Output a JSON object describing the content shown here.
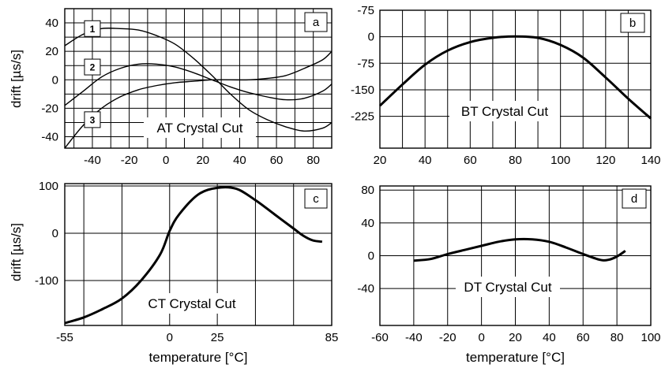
{
  "chart_data": [
    {
      "id": "a",
      "type": "line",
      "panel_label": "a",
      "title": "AT Crystal Cut",
      "ylabel": "drift [µs/s]",
      "xlabel": "",
      "xlim": [
        -55,
        90
      ],
      "ylim": [
        -48,
        50
      ],
      "xticks": [
        -40,
        -20,
        0,
        20,
        40,
        60,
        80
      ],
      "yticks": [
        40,
        20,
        0,
        -20,
        -40
      ],
      "xgrid": [
        -50,
        -40,
        -30,
        -20,
        -10,
        0,
        10,
        20,
        30,
        40,
        50,
        60,
        70,
        80,
        90
      ],
      "ygrid": [
        40,
        30,
        20,
        10,
        0,
        -10,
        -20,
        -30,
        -40
      ],
      "grid": true,
      "series": [
        {
          "name": "1",
          "x": [
            -55,
            -45,
            -35,
            -25,
            -15,
            -5,
            5,
            15,
            25,
            35,
            45,
            55,
            65,
            75,
            85,
            90
          ],
          "y": [
            24,
            32,
            36,
            36,
            35,
            31,
            25,
            15,
            3,
            -10,
            -21,
            -28,
            -33,
            -36,
            -34,
            -30
          ]
        },
        {
          "name": "2",
          "x": [
            -55,
            -45,
            -35,
            -25,
            -15,
            -5,
            5,
            15,
            25,
            35,
            45,
            55,
            65,
            75,
            85,
            90
          ],
          "y": [
            -18,
            -8,
            2,
            8,
            11,
            11,
            9,
            5,
            0,
            -5,
            -9,
            -12,
            -14,
            -13,
            -8,
            -3
          ]
        },
        {
          "name": "3",
          "x": [
            -55,
            -45,
            -35,
            -25,
            -15,
            -5,
            5,
            15,
            25,
            35,
            45,
            55,
            65,
            75,
            85,
            90
          ],
          "y": [
            -48,
            -32,
            -20,
            -12,
            -7,
            -4,
            -2,
            -1,
            0,
            0,
            0,
            1,
            3,
            8,
            14,
            20
          ]
        }
      ]
    },
    {
      "id": "b",
      "type": "line",
      "panel_label": "b",
      "title": "BT Crystal Cut",
      "ylabel": "",
      "xlabel": "",
      "xlim": [
        20,
        140
      ],
      "ylim": [
        -270,
        -75
      ],
      "xticks": [
        20,
        40,
        60,
        80,
        100,
        120,
        140
      ],
      "ytick_values": [
        -75,
        -150,
        -225
      ],
      "ytick_labels": [
        "-75",
        "0",
        "-75",
        "-150",
        "-225"
      ],
      "ytick_label_values": [
        -75,
        -112.5,
        -150,
        -187.5,
        -225
      ],
      "xgrid": [
        20,
        30,
        40,
        50,
        60,
        70,
        80,
        90,
        100,
        110,
        120,
        130,
        140
      ],
      "ygrid": [
        -112.5,
        -150,
        -187.5,
        -225
      ],
      "grid": true,
      "series": [
        {
          "name": "",
          "x": [
            20,
            30,
            40,
            50,
            60,
            70,
            80,
            90,
            100,
            110,
            120,
            130,
            140
          ],
          "y": [
            -210,
            -180,
            -152,
            -132,
            -120,
            -114,
            -112,
            -114,
            -124,
            -142,
            -170,
            -200,
            -228
          ]
        }
      ]
    },
    {
      "id": "c",
      "type": "line",
      "panel_label": "c",
      "title": "CT Crystal Cut",
      "ylabel": "drift [µs/s]",
      "xlabel": "temperature [°C]",
      "xlim": [
        -55,
        85
      ],
      "ylim": [
        -195,
        105
      ],
      "xticks": [
        -55,
        0,
        25,
        85
      ],
      "yticks": [
        100,
        0,
        -100
      ],
      "xgrid": [
        -45,
        -25,
        0,
        25,
        45,
        65,
        85
      ],
      "ygrid": [
        100,
        0,
        -100
      ],
      "grid": true,
      "series": [
        {
          "name": "",
          "x": [
            -55,
            -45,
            -35,
            -25,
            -15,
            -5,
            0,
            5,
            15,
            25,
            35,
            45,
            55,
            65,
            70,
            75,
            80
          ],
          "y": [
            -190,
            -178,
            -160,
            -138,
            -100,
            -45,
            5,
            40,
            82,
            96,
            94,
            70,
            40,
            10,
            -5,
            -15,
            -18
          ]
        }
      ]
    },
    {
      "id": "d",
      "type": "line",
      "panel_label": "d",
      "title": "DT Crystal Cut",
      "ylabel": "",
      "xlabel": "temperature [°C]",
      "xlim": [
        -60,
        100
      ],
      "ylim": [
        -85,
        85
      ],
      "xticks": [
        -60,
        -40,
        -20,
        0,
        20,
        40,
        60,
        80,
        100
      ],
      "yticks": [
        80,
        40,
        0,
        -40
      ],
      "xgrid": [
        -60,
        -40,
        -20,
        0,
        20,
        40,
        60,
        80,
        100
      ],
      "ygrid": [
        80,
        40,
        0,
        -40
      ],
      "grid": true,
      "series": [
        {
          "name": "",
          "x": [
            -40,
            -30,
            -20,
            -10,
            0,
            10,
            20,
            30,
            40,
            50,
            60,
            70,
            75,
            80,
            85
          ],
          "y": [
            -6,
            -4,
            2,
            7,
            12,
            17,
            20,
            20,
            17,
            10,
            2,
            -5,
            -5,
            -1,
            6
          ]
        }
      ]
    }
  ]
}
